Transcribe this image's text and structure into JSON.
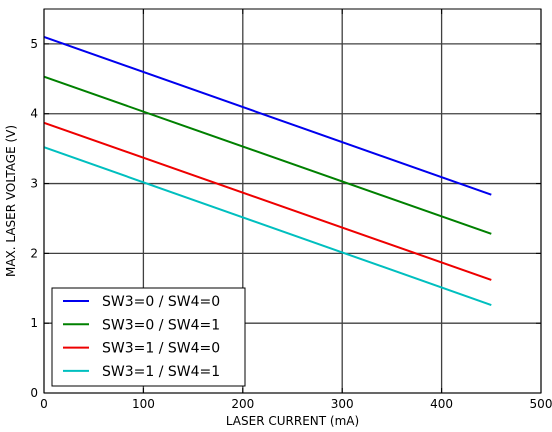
{
  "chart_data": {
    "type": "line",
    "title": "",
    "xlabel": "LASER CURRENT (mA)",
    "ylabel": "MAX. LASER VOLTAGE (V)",
    "xlim": [
      0,
      500
    ],
    "ylim": [
      0,
      5.5
    ],
    "xticks": [
      "0",
      "100",
      "200",
      "300",
      "400",
      "500"
    ],
    "yticks": [
      "0",
      "1",
      "2",
      "3",
      "4",
      "5"
    ],
    "grid": true,
    "legend_position": "lower-left",
    "series": [
      {
        "name": "SW3=0 / SW4=0",
        "color": "#0000ee",
        "x": [
          0,
          450
        ],
        "y": [
          5.1,
          2.84
        ]
      },
      {
        "name": "SW3=0 / SW4=1",
        "color": "#008000",
        "x": [
          0,
          450
        ],
        "y": [
          4.53,
          2.28
        ]
      },
      {
        "name": "SW3=1 / SW4=0",
        "color": "#ee0000",
        "x": [
          0,
          450
        ],
        "y": [
          3.87,
          1.62
        ]
      },
      {
        "name": "SW3=1 / SW4=1",
        "color": "#00bfbf",
        "x": [
          0,
          450
        ],
        "y": [
          3.52,
          1.26
        ]
      }
    ]
  }
}
